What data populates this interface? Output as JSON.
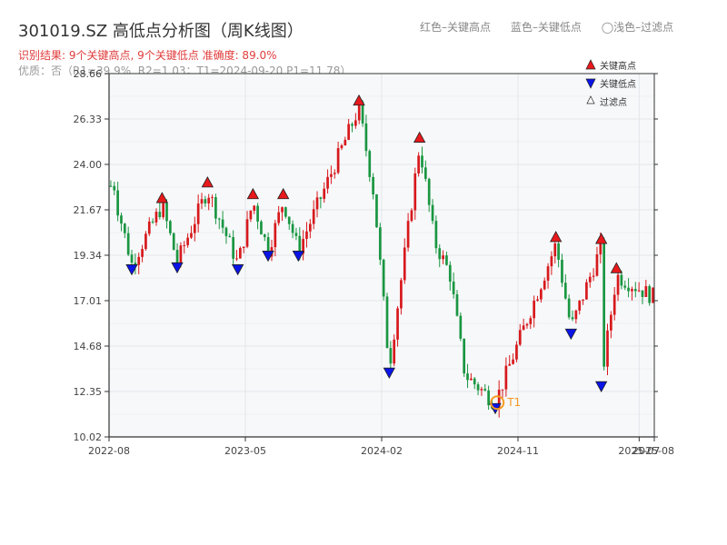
{
  "header": {
    "title": "301019.SZ 高低点分析图（周K线图）",
    "subtitle": "识别结果: 9个关键高点, 9个关键低点 准确度: 89.0%",
    "note": "优质：否（R1=39.9%, R2=1.03；T1=2024-09-20 P1=11.78）",
    "legend_top": [
      "红色–关键高点",
      "蓝色–关键低点",
      "◯浅色–过滤点"
    ]
  },
  "colors": {
    "up": "#d7191c",
    "down": "#1a9641",
    "high_marker": "#e8191c",
    "low_marker": "#0a14e6",
    "t1_ring": "#f59a23",
    "plot_bg": "#f7f8fa",
    "grid": "#e3e6ea"
  },
  "chart_data": {
    "type": "candlestick",
    "x_ticks": [
      "2022-08",
      "2023-05",
      "2024-02",
      "2024-11",
      "2025-07",
      "2025-08"
    ],
    "y_ticks": [
      "10.02",
      "12.35",
      "14.68",
      "17.01",
      "19.34",
      "21.67",
      "24.00",
      "26.33",
      "28.66"
    ],
    "ylim": [
      10.02,
      28.66
    ],
    "x_start": "2022-08",
    "x_end": "2025-08",
    "series": [
      {
        "name": "关键高点",
        "points": [
          [
            "2022-11",
            21.9
          ],
          [
            "2023-02",
            22.7
          ],
          [
            "2023-05",
            22.1
          ],
          [
            "2023-07",
            22.1
          ],
          [
            "2023-12",
            26.9
          ],
          [
            "2024-04",
            25.0
          ],
          [
            "2025-01",
            19.9
          ],
          [
            "2025-04",
            19.8
          ],
          [
            "2025-05",
            18.3
          ]
        ]
      },
      {
        "name": "关键低点",
        "points": [
          [
            "2022-09",
            18.9
          ],
          [
            "2022-12",
            19.0
          ],
          [
            "2023-04",
            18.9
          ],
          [
            "2023-06",
            19.6
          ],
          [
            "2023-08",
            19.6
          ],
          [
            "2024-02",
            13.6
          ],
          [
            "2024-09",
            11.78
          ],
          [
            "2025-02",
            15.6
          ],
          [
            "2025-04",
            12.9
          ]
        ]
      },
      {
        "name": "过滤点",
        "points": []
      }
    ],
    "annotations": [
      {
        "label": "T1",
        "date": "2024-09-20",
        "value": 11.78
      }
    ]
  }
}
